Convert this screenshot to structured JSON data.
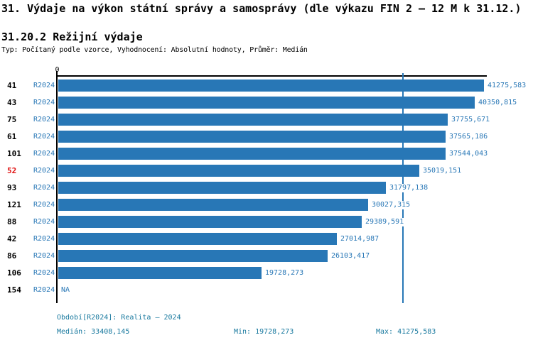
{
  "header": {
    "title": "31. Výdaje na výkon státní správy a samosprávy (dle výkazu FIN 2 – 12 M k 31.12.)",
    "subtitle": "31.20.2 Režijní výdaje",
    "meta": "Typ: Počítaný podle vzorce, Vyhodnocení: Absolutní hodnoty, Průměr: Medián"
  },
  "chart_data": {
    "type": "bar",
    "orientation": "horizontal",
    "axis_zero_label": "0",
    "series_label": "R2024",
    "bar_color": "#2877b6",
    "label_color": "#2877b6",
    "highlight_color": "#e01212",
    "highlighted_category": "52",
    "categories": [
      "41",
      "43",
      "75",
      "61",
      "101",
      "52",
      "93",
      "121",
      "88",
      "42",
      "86",
      "106",
      "154"
    ],
    "values": [
      41275.583,
      40350.815,
      37755.671,
      37565.186,
      37544.043,
      35019.151,
      31797.138,
      30027.315,
      29389.591,
      27014.987,
      26103.417,
      19728.273,
      null
    ],
    "value_labels": [
      "41275,583",
      "40350,815",
      "37755,671",
      "37565,186",
      "37544,043",
      "35019,151",
      "31797,138",
      "30027,315",
      "29389,591",
      "27014,987",
      "26103,417",
      "19728,273",
      "NA"
    ],
    "median": 33408.145,
    "xlim": [
      0,
      41275.583
    ],
    "grid": false,
    "legend_position": "none"
  },
  "footer": {
    "color": "#17789e",
    "period": "Období[R2024]: Realita – 2024",
    "median": "Medián: 33408,145",
    "min": "Min: 19728,273",
    "max": "Max: 41275,583"
  }
}
